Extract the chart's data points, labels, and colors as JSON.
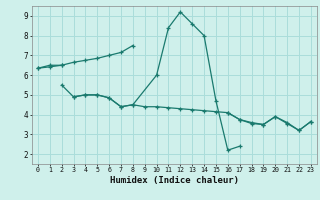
{
  "xlabel": "Humidex (Indice chaleur)",
  "xlim": [
    -0.5,
    23.5
  ],
  "ylim": [
    1.5,
    9.5
  ],
  "xticks": [
    0,
    1,
    2,
    3,
    4,
    5,
    6,
    7,
    8,
    9,
    10,
    11,
    12,
    13,
    14,
    15,
    16,
    17,
    18,
    19,
    20,
    21,
    22,
    23
  ],
  "yticks": [
    2,
    3,
    4,
    5,
    6,
    7,
    8,
    9
  ],
  "bg_color": "#cff0eb",
  "grid_color": "#aaddda",
  "line_color": "#1a7a6e",
  "series": [
    {
      "x": [
        0,
        1,
        2,
        3,
        4,
        5,
        6,
        7,
        8
      ],
      "y": [
        6.35,
        6.42,
        6.5,
        6.65,
        6.75,
        6.85,
        7.0,
        7.15,
        7.5
      ]
    },
    {
      "x": [
        2,
        3,
        4,
        5,
        6,
        7,
        8,
        10,
        11,
        12,
        13,
        14,
        15,
        16,
        17
      ],
      "y": [
        5.5,
        4.9,
        5.0,
        5.0,
        4.85,
        4.4,
        4.5,
        6.0,
        8.4,
        9.2,
        8.6,
        8.0,
        4.7,
        2.2,
        2.4
      ]
    },
    {
      "x": [
        3,
        4,
        5,
        6,
        7,
        8,
        9,
        10,
        11,
        12,
        13,
        14,
        15,
        16,
        17,
        18,
        19,
        20,
        21,
        22,
        23
      ],
      "y": [
        4.9,
        5.0,
        5.0,
        4.85,
        4.4,
        4.5,
        4.4,
        4.4,
        4.35,
        4.3,
        4.25,
        4.2,
        4.15,
        4.1,
        3.75,
        3.6,
        3.5,
        3.9,
        3.55,
        3.2,
        3.65
      ]
    },
    {
      "x": [
        16,
        17,
        18,
        19,
        20,
        21,
        22,
        23
      ],
      "y": [
        4.1,
        3.75,
        3.55,
        3.5,
        3.9,
        3.6,
        3.2,
        3.65
      ]
    },
    {
      "x": [
        0,
        1,
        2
      ],
      "y": [
        6.35,
        6.5,
        6.5
      ]
    }
  ]
}
